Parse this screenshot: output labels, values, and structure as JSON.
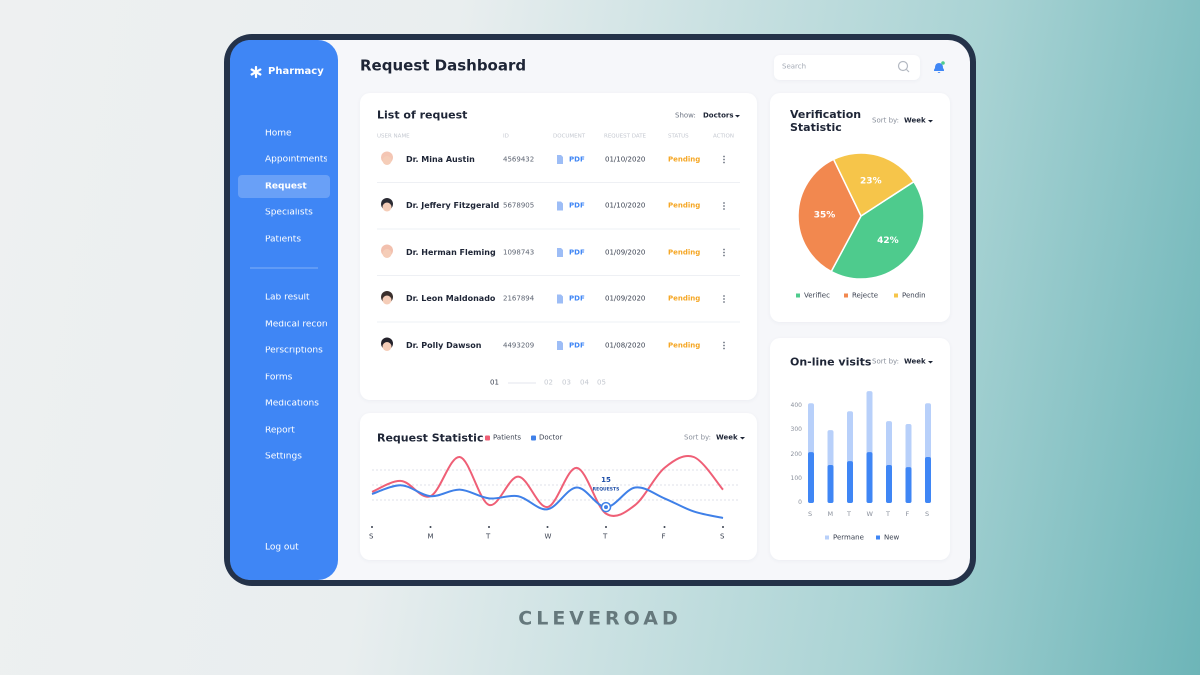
{
  "sidebar": {
    "brand": "Pharmacy",
    "menu": [
      "Home",
      "Appointments",
      "Request",
      "Specialists",
      "Patients"
    ],
    "menu2": [
      "Lab result",
      "Medical records",
      "Perscriptions",
      "Forms",
      "Medications",
      "Report",
      "Settings"
    ],
    "active_index": 2,
    "logout": "Log out"
  },
  "header": {
    "title": "Request Dashboard",
    "search": "Search"
  },
  "requests": {
    "title": "List of request",
    "show_label": "Show:",
    "show_value": "Doctors",
    "columns": [
      "USER NAME",
      "ID",
      "DOCUMENT",
      "REQUEST DATE",
      "STATUS",
      "ACTION"
    ],
    "rows": [
      [
        "Dr. Mina Austin",
        "4569432",
        "PDF",
        "01/10/2020",
        "Pending"
      ],
      [
        "Dr. Jeffery Fitzgerald",
        "5678905",
        "PDF",
        "01/10/2020",
        "Pending"
      ],
      [
        "Dr. Herman Fleming",
        "1098743",
        "PDF",
        "01/09/2020",
        "Pending"
      ],
      [
        "Dr. Leon Maldonado",
        "2167894",
        "PDF",
        "01/09/2020",
        "Pending"
      ],
      [
        "Dr. Polly Dawson",
        "4493209",
        "PDF",
        "01/08/2020",
        "Pending"
      ]
    ],
    "pages": [
      "01",
      "02",
      "03",
      "04",
      "05"
    ]
  },
  "chart_data": [
    {
      "type": "line",
      "title": "Request Statistic",
      "sort_label": "Sort by:",
      "sort_value": "Week",
      "categories": [
        "S",
        null,
        "M",
        null,
        "T",
        null,
        "W",
        null,
        "T",
        null,
        "F",
        null,
        "S"
      ],
      "series": [
        {
          "name": "Patients",
          "color": "#ef5f76",
          "values": [
            22,
            27,
            20,
            38,
            16,
            29,
            15,
            33,
            12,
            16,
            33,
            38,
            23
          ]
        },
        {
          "name": "Doctor",
          "color": "#3f80e8",
          "values": [
            21,
            25,
            20,
            23,
            19,
            20,
            14,
            24,
            15,
            24,
            19,
            13,
            10
          ]
        }
      ],
      "annotation": "REQUESTS",
      "grid": true
    },
    {
      "type": "pie",
      "title": "Verification Statistic",
      "sort_label": "Sort by:",
      "sort_value": "Week",
      "categories": [
        "Verifiec",
        "Rejecte",
        "Pendin"
      ],
      "values": [
        42,
        35,
        23
      ],
      "value_labels": [
        "42%",
        "35%",
        "23%"
      ],
      "colors": [
        "#4ecb8d",
        "#f2884f",
        "#f6c54a"
      ]
    },
    {
      "type": "bar",
      "title": "On-line visits",
      "sort_label": "Sort by:",
      "sort_value": "Week",
      "categories": [
        "S",
        "M",
        "T",
        "W",
        "T",
        "F",
        "S"
      ],
      "series": [
        {
          "name": "Permane",
          "color": "#b8d0fa",
          "values": [
            412,
            301,
            379,
            462,
            338,
            326,
            412
          ]
        },
        {
          "name": "New",
          "color": "#3f86f5",
          "values": [
            210,
            157,
            173,
            210,
            157,
            148,
            190
          ]
        }
      ],
      "ylim": [
        0,
        450
      ],
      "yticks": [
        0,
        100,
        200,
        300,
        400
      ]
    }
  ],
  "footer": {
    "brand": "CLEVEROAD"
  }
}
